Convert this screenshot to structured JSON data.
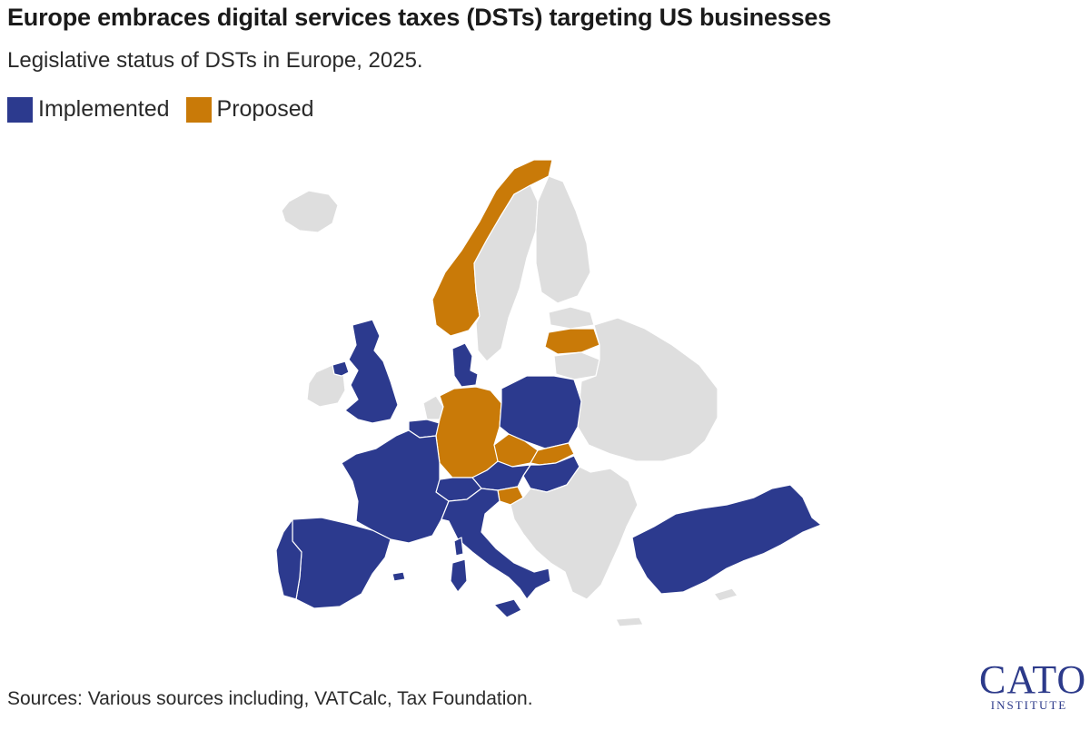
{
  "header": {
    "title": "Europe embraces digital services taxes (DSTs) targeting US businesses",
    "subtitle": "Legislative status of DSTs in Europe, 2025."
  },
  "legend": {
    "implemented": {
      "label": "Implemented",
      "color": "#2c3a8e"
    },
    "proposed": {
      "label": "Proposed",
      "color": "#c97a08"
    }
  },
  "colors": {
    "none": "#dedede",
    "border": "#ffffff"
  },
  "map_data": {
    "type": "choropleth",
    "region": "Europe",
    "implemented": [
      "United Kingdom",
      "France",
      "Spain",
      "Portugal",
      "Italy",
      "Austria",
      "Switzerland",
      "Denmark",
      "Poland",
      "Hungary",
      "Turkey",
      "Belgium"
    ],
    "proposed": [
      "Norway",
      "Germany",
      "Czechia",
      "Slovakia",
      "Slovenia",
      "Latvia"
    ]
  },
  "footer": {
    "source": "Sources: Various sources including, VATCalc, Tax Foundation.",
    "logo_main": "CATO",
    "logo_sub": "INSTITUTE"
  }
}
